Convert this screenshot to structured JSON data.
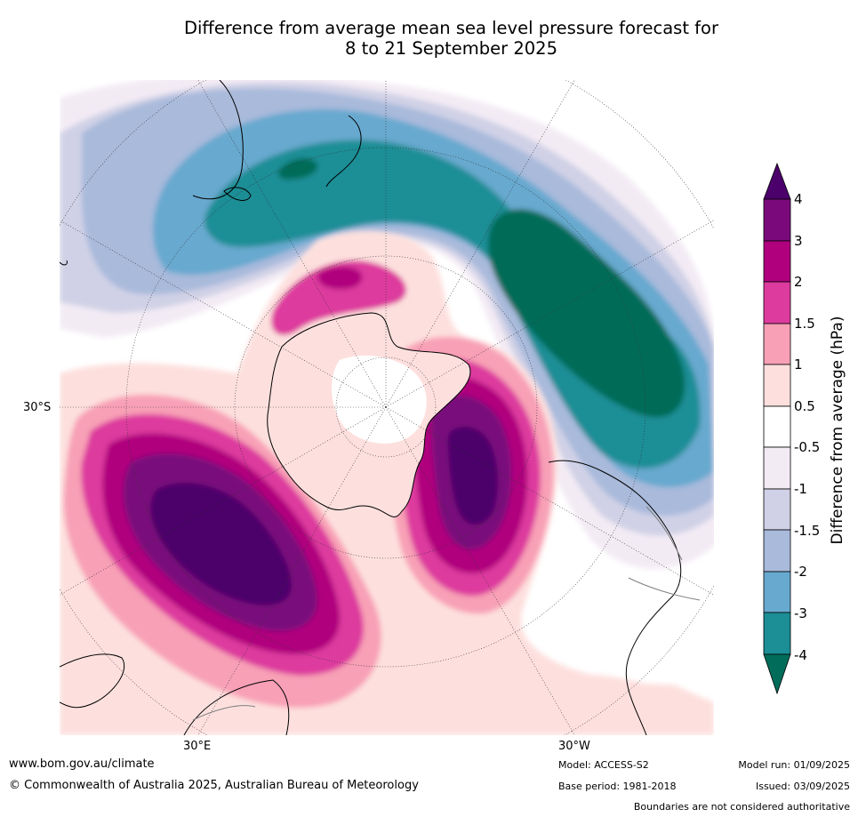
{
  "title_line1": "Difference from average mean sea level pressure forecast for",
  "title_line2": "8 to 21 September 2025",
  "map_labels": {
    "lat_30s": "30°S",
    "lon_30e": "30°E",
    "lon_30w": "30°W"
  },
  "colorbar": {
    "title": "Difference from average (hPa)",
    "ticks": [
      "4",
      "3",
      "2",
      "1.5",
      "1",
      "0.5",
      "-0.5",
      "-1",
      "-1.5",
      "-2",
      "-3",
      "-4"
    ],
    "colors_top_to_bottom": [
      "#4b006b",
      "#7a0a7c",
      "#b0007e",
      "#dd3b9e",
      "#f8a0b6",
      "#fde0de",
      "#ffffff",
      "#f3ebf4",
      "#d0d1e6",
      "#a9badb",
      "#67a9cf",
      "#1c8e96",
      "#016c59"
    ]
  },
  "footer": {
    "website": "www.bom.gov.au/climate",
    "copyright": "© Commonwealth of Australia 2025, Australian Bureau of Meteorology",
    "model": "Model: ACCESS-S2",
    "base_period": "Base period: 1981-2018",
    "model_run": "Model run: 01/09/2025",
    "issued": "Issued: 03/09/2025",
    "disclaimer": "Boundaries are not considered authoritative"
  }
}
